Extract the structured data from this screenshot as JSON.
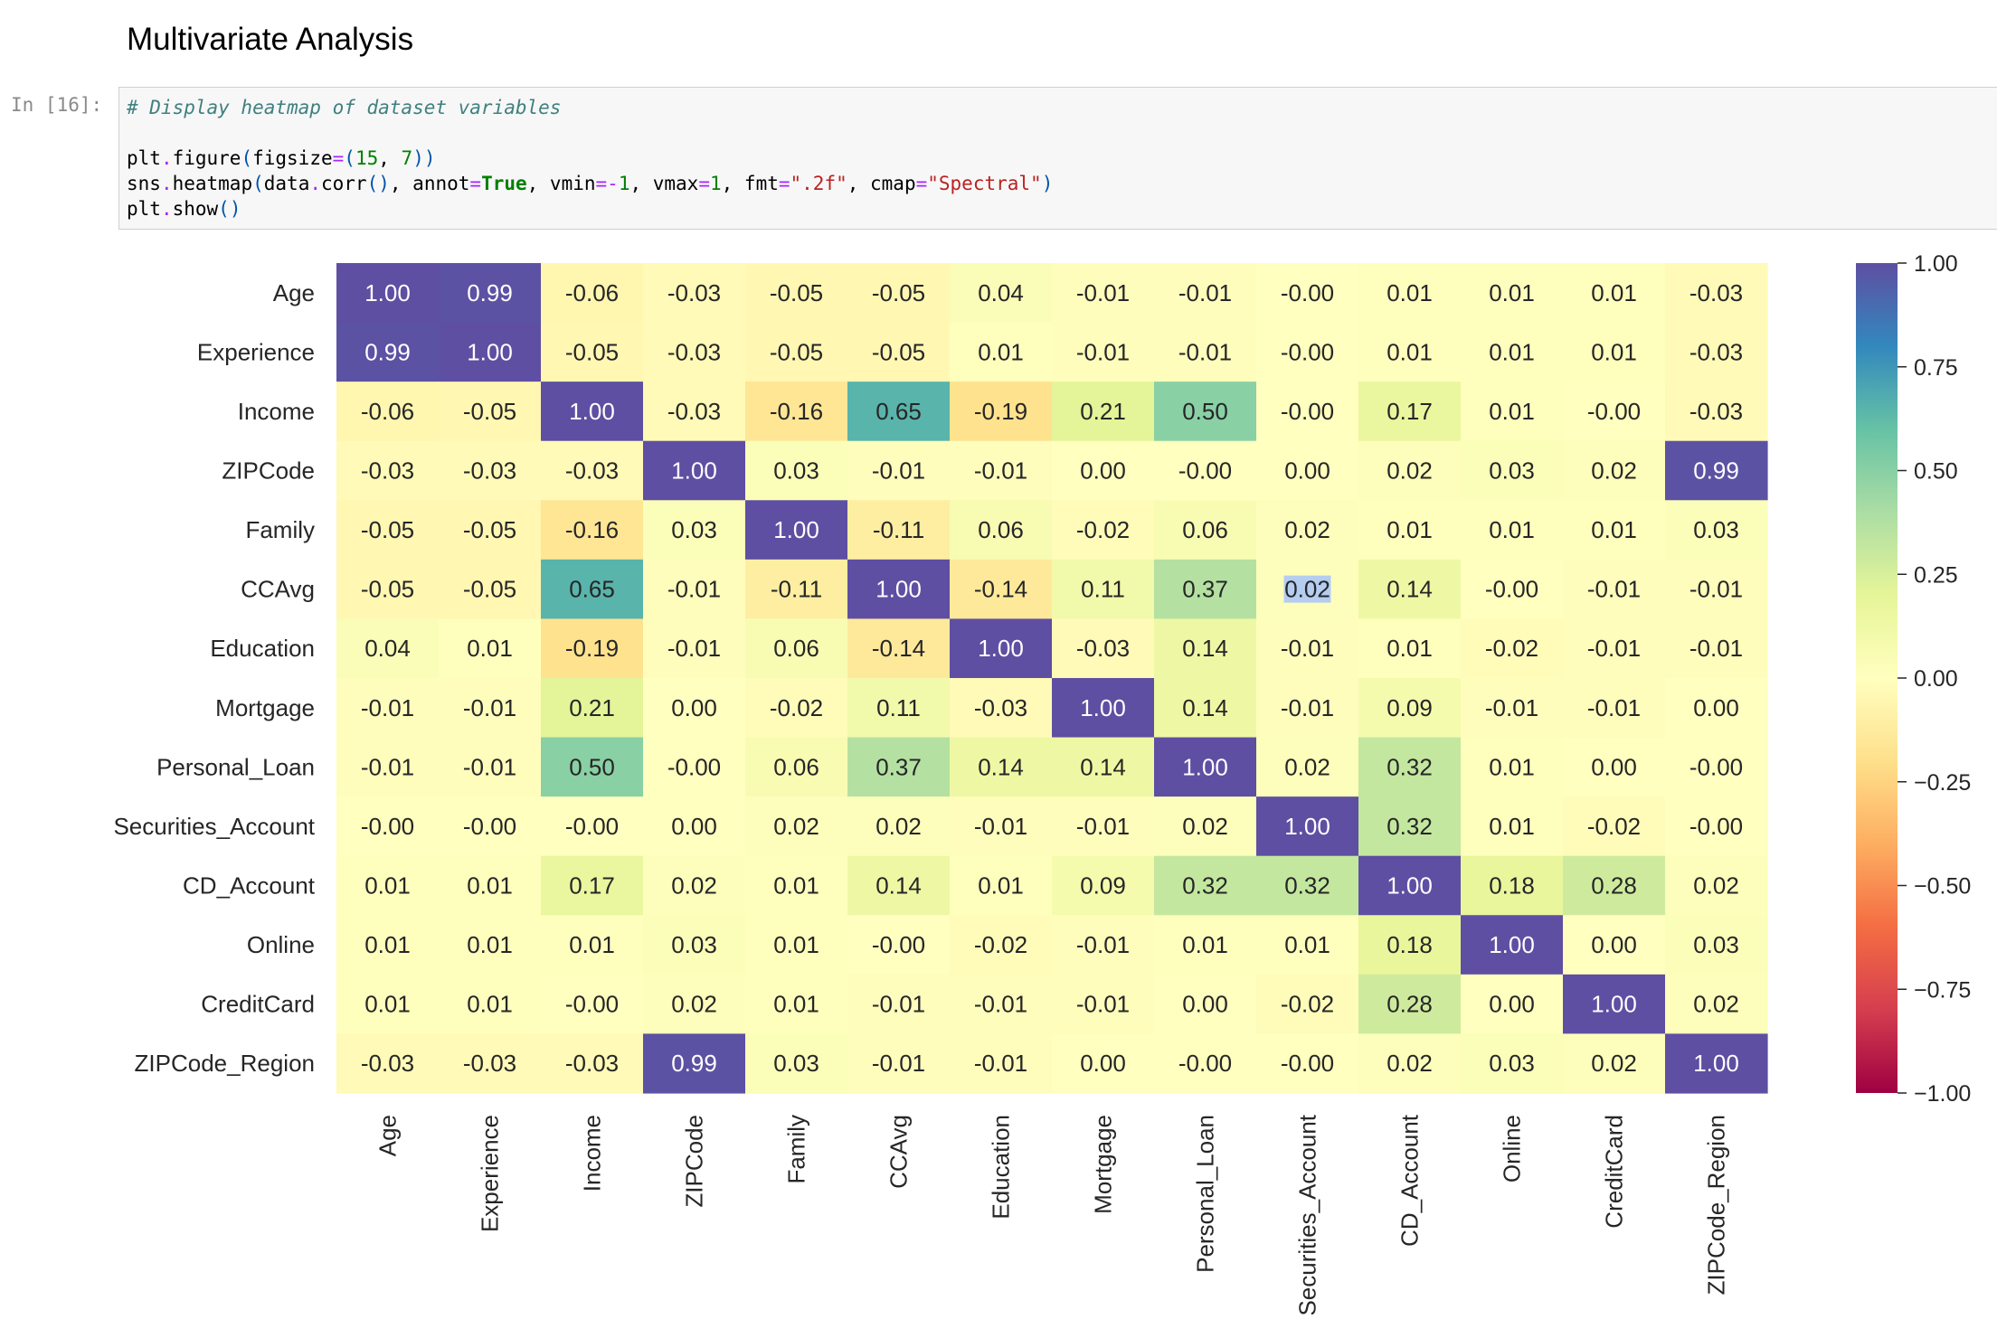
{
  "notebook": {
    "section_title": "Multivariate Analysis",
    "cell": {
      "prompt": "In [16]:",
      "code": {
        "comment": "# Display heatmap of dataset variables",
        "line2": "plt.figure(figsize=(15, 7))",
        "line3": "sns.heatmap(data.corr(), annot=True, vmin=-1, vmax=1, fmt=\".2f\", cmap=\"Spectral\")",
        "line4": "plt.show()"
      }
    }
  },
  "chart_data": {
    "type": "heatmap",
    "title": "",
    "colormap": "Spectral",
    "vmin": -1,
    "vmax": 1,
    "format": ".2f",
    "labels": [
      "Age",
      "Experience",
      "Income",
      "ZIPCode",
      "Family",
      "CCAvg",
      "Education",
      "Mortgage",
      "Personal_Loan",
      "Securities_Account",
      "CD_Account",
      "Online",
      "CreditCard",
      "ZIPCode_Region"
    ],
    "matrix": [
      [
        1.0,
        0.99,
        -0.06,
        -0.03,
        -0.05,
        -0.05,
        0.04,
        -0.01,
        -0.01,
        -0.0,
        0.01,
        0.01,
        0.01,
        -0.03
      ],
      [
        0.99,
        1.0,
        -0.05,
        -0.03,
        -0.05,
        -0.05,
        0.01,
        -0.01,
        -0.01,
        -0.0,
        0.01,
        0.01,
        0.01,
        -0.03
      ],
      [
        -0.06,
        -0.05,
        1.0,
        -0.03,
        -0.16,
        0.65,
        -0.19,
        0.21,
        0.5,
        -0.0,
        0.17,
        0.01,
        -0.0,
        -0.03
      ],
      [
        -0.03,
        -0.03,
        -0.03,
        1.0,
        0.03,
        -0.01,
        -0.01,
        0.0,
        -0.0,
        0.0,
        0.02,
        0.03,
        0.02,
        0.99
      ],
      [
        -0.05,
        -0.05,
        -0.16,
        0.03,
        1.0,
        -0.11,
        0.06,
        -0.02,
        0.06,
        0.02,
        0.01,
        0.01,
        0.01,
        0.03
      ],
      [
        -0.05,
        -0.05,
        0.65,
        -0.01,
        -0.11,
        1.0,
        -0.14,
        0.11,
        0.37,
        0.02,
        0.14,
        -0.0,
        -0.01,
        -0.01
      ],
      [
        0.04,
        0.01,
        -0.19,
        -0.01,
        0.06,
        -0.14,
        1.0,
        -0.03,
        0.14,
        -0.01,
        0.01,
        -0.02,
        -0.01,
        -0.01
      ],
      [
        -0.01,
        -0.01,
        0.21,
        0.0,
        -0.02,
        0.11,
        -0.03,
        1.0,
        0.14,
        -0.01,
        0.09,
        -0.01,
        -0.01,
        0.0
      ],
      [
        -0.01,
        -0.01,
        0.5,
        -0.0,
        0.06,
        0.37,
        0.14,
        0.14,
        1.0,
        0.02,
        0.32,
        0.01,
        0.0,
        -0.0
      ],
      [
        -0.0,
        -0.0,
        -0.0,
        0.0,
        0.02,
        0.02,
        -0.01,
        -0.01,
        0.02,
        1.0,
        0.32,
        0.01,
        -0.02,
        -0.0
      ],
      [
        0.01,
        0.01,
        0.17,
        0.02,
        0.01,
        0.14,
        0.01,
        0.09,
        0.32,
        0.32,
        1.0,
        0.18,
        0.28,
        0.02
      ],
      [
        0.01,
        0.01,
        0.01,
        0.03,
        0.01,
        -0.0,
        -0.02,
        -0.01,
        0.01,
        0.01,
        0.18,
        1.0,
        0.0,
        0.03
      ],
      [
        0.01,
        0.01,
        -0.0,
        0.02,
        0.01,
        -0.01,
        -0.01,
        -0.01,
        0.0,
        -0.02,
        0.28,
        0.0,
        1.0,
        0.02
      ],
      [
        -0.03,
        -0.03,
        -0.03,
        0.99,
        0.03,
        -0.01,
        -0.01,
        0.0,
        -0.0,
        -0.0,
        0.02,
        0.03,
        0.02,
        1.0
      ]
    ],
    "colorbar_ticks": [
      "1.00",
      "0.75",
      "0.50",
      "0.25",
      "0.00",
      "−0.25",
      "−0.50",
      "−0.75",
      "−1.00"
    ],
    "colorbar_tick_values": [
      1.0,
      0.75,
      0.5,
      0.25,
      0.0,
      -0.25,
      -0.5,
      -0.75,
      -1.0
    ],
    "selected_cell": {
      "row": 5,
      "col": 9
    }
  }
}
